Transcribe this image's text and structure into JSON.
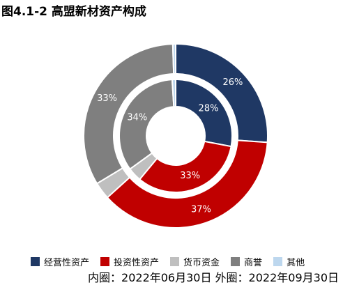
{
  "title": "图4.1-2 高盟新材资产构成",
  "note": "内圈：2022年06月30日 外圈：2022年09月30日",
  "colors": {
    "operating": "#1f3864",
    "investment": "#c00000",
    "cash": "#bfbfbf",
    "goodwill": "#7f7f7f",
    "other": "#bdd7ee"
  },
  "chart_data": {
    "type": "pie",
    "title": "图4.1-2 高盟新材资产构成",
    "categories": [
      "经营性资产",
      "投资性资产",
      "货币资金",
      "商誉",
      "其他"
    ],
    "series": [
      {
        "name": "内圈：2022年06月30日",
        "values": [
          28,
          33,
          4,
          34,
          1
        ],
        "labels": [
          "28%",
          "33%",
          "",
          "34%",
          ""
        ]
      },
      {
        "name": "外圈：2022年09月30日",
        "values": [
          26,
          37,
          3,
          33,
          0.5
        ],
        "labels": [
          "26%",
          "37%",
          "",
          "33%",
          ""
        ]
      }
    ],
    "legend_position": "bottom"
  }
}
